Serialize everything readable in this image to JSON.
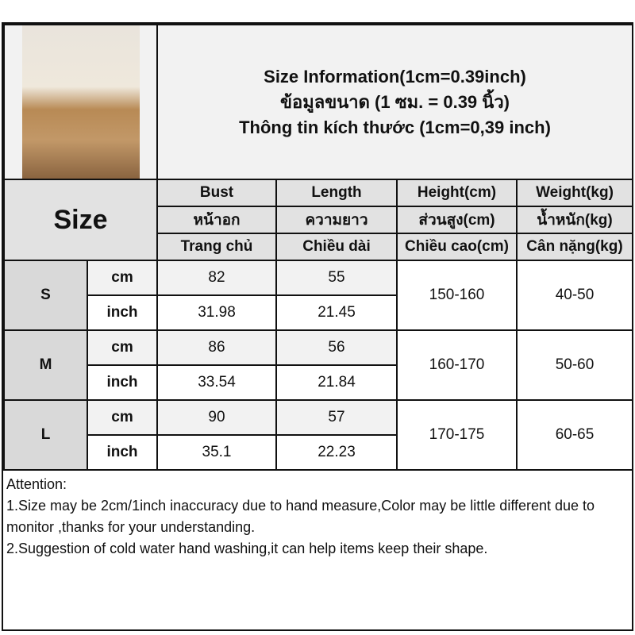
{
  "title_lines": [
    "Size Information(1cm=0.39inch)",
    "ข้อมูลขนาด (1 ซม. = 0.39 นิ้ว)",
    "Thông tin kích thước (1cm=0,39 inch)"
  ],
  "size_label": "Size",
  "headers": [
    [
      "Bust",
      "Length",
      "Height(cm)",
      "Weight(kg)"
    ],
    [
      "หน้าอก",
      "ความยาว",
      "ส่วนสูง(cm)",
      "น้ำหนัก(kg)"
    ],
    [
      "Trang chủ",
      "Chiều dài",
      "Chiều cao(cm)",
      "Cân nặng(kg)"
    ]
  ],
  "rows": [
    {
      "size": "S",
      "cm_label": "cm",
      "inch_label": "inch",
      "bust_cm": "82",
      "length_cm": "55",
      "bust_inch": "31.98",
      "length_inch": "21.45",
      "height": "150-160",
      "weight": "40-50"
    },
    {
      "size": "M",
      "cm_label": "cm",
      "inch_label": "inch",
      "bust_cm": "86",
      "length_cm": "56",
      "bust_inch": "33.54",
      "length_inch": "21.84",
      "height": "160-170",
      "weight": "50-60"
    },
    {
      "size": "L",
      "cm_label": "cm",
      "inch_label": "inch",
      "bust_cm": "90",
      "length_cm": "57",
      "bust_inch": "35.1",
      "length_inch": "22.23",
      "height": "170-175",
      "weight": "60-65"
    }
  ],
  "attention": {
    "heading": "Attention:",
    "line1": "1.Size may be 2cm/1inch inaccuracy due to hand measure,Color may be little different due to monitor ,thanks for your understanding.",
    "line2": "2.Suggestion of cold water hand washing,it can help items keep their shape."
  },
  "colors": {
    "header_bg": "#e2e2e2",
    "size_bg": "#d9d9d9",
    "cm_row_bg": "#f2f2f2"
  }
}
